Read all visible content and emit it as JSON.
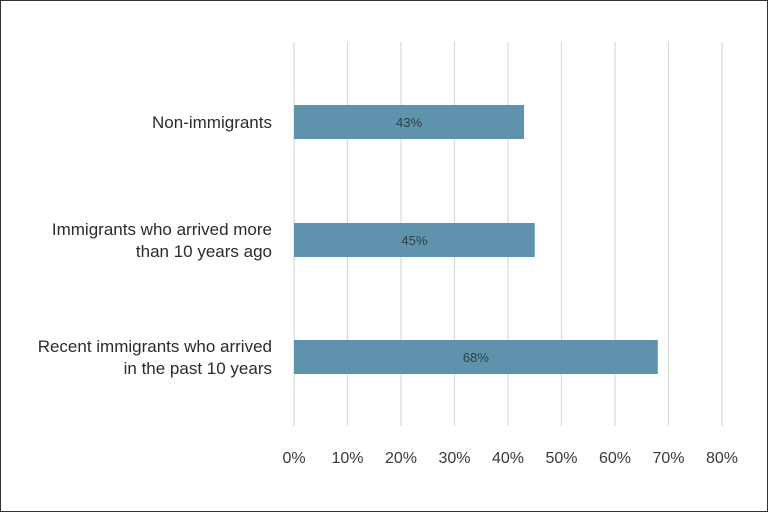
{
  "chart_data": {
    "type": "bar",
    "orientation": "horizontal",
    "categories": [
      [
        "Non-immigrants"
      ],
      [
        "Immigrants who arrived more",
        "than 10 years ago"
      ],
      [
        "Recent immigrants who arrived",
        "in the past 10 years"
      ]
    ],
    "values": [
      43,
      45,
      68
    ],
    "data_labels": [
      "43%",
      "45%",
      "68%"
    ],
    "x_ticks": [
      "0%",
      "10%",
      "20%",
      "30%",
      "40%",
      "50%",
      "60%",
      "70%",
      "80%"
    ],
    "xlim": [
      0,
      80
    ],
    "grid": "vertical",
    "bar_color": "#5f93ad",
    "title": "",
    "xlabel": "",
    "ylabel": ""
  }
}
